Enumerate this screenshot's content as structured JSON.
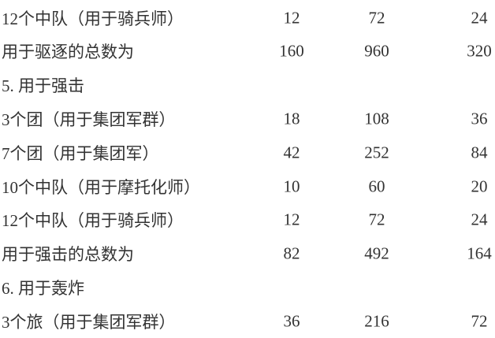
{
  "rows": [
    {
      "label": "12个中队（用于骑兵师）",
      "v1": "12",
      "v2": "72",
      "v3": "24"
    },
    {
      "label": "用于驱逐的总数为",
      "v1": "160",
      "v2": "960",
      "v3": "320"
    },
    {
      "label": "5.  用于强击",
      "v1": "",
      "v2": "",
      "v3": ""
    },
    {
      "label": "3个团（用于集团军群）",
      "v1": "18",
      "v2": "108",
      "v3": "36"
    },
    {
      "label": "7个团（用于集团军）",
      "v1": "42",
      "v2": "252",
      "v3": "84"
    },
    {
      "label": "10个中队（用于摩托化师）",
      "v1": "10",
      "v2": "60",
      "v3": "20"
    },
    {
      "label": "12个中队（用于骑兵师）",
      "v1": "12",
      "v2": "72",
      "v3": "24"
    },
    {
      "label": "用于强击的总数为",
      "v1": "82",
      "v2": "492",
      "v3": "164"
    },
    {
      "label": "6.  用于轰炸",
      "v1": "",
      "v2": "",
      "v3": ""
    },
    {
      "label": "3个旅（用于集团军群）",
      "v1": "36",
      "v2": "216",
      "v3": "72"
    }
  ]
}
